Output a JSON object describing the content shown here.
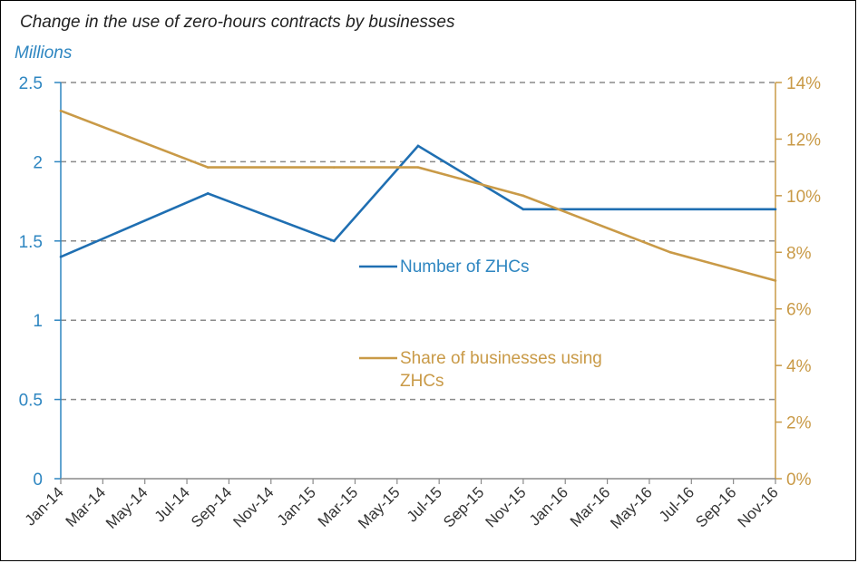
{
  "chart_data": {
    "type": "line",
    "title": "Change in the use of zero-hours contracts by businesses",
    "y_left_label": "Millions",
    "categories": [
      "Jan-14",
      "Mar-14",
      "May-14",
      "Jul-14",
      "Sep-14",
      "Nov-14",
      "Jan-15",
      "Mar-15",
      "May-15",
      "Jul-15",
      "Sep-15",
      "Nov-15",
      "Jan-16",
      "Mar-16",
      "May-16",
      "Jul-16",
      "Sep-16",
      "Nov-16"
    ],
    "ylim_left": [
      0,
      2.5
    ],
    "ylim_right": [
      0,
      14
    ],
    "y_left_ticks": [
      "0",
      "0.5",
      "1",
      "1.5",
      "2",
      "2.5"
    ],
    "y_right_ticks": [
      "0%",
      "2%",
      "4%",
      "6%",
      "8%",
      "10%",
      "12%",
      "14%"
    ],
    "grid": true,
    "series": [
      {
        "name": "Number of ZHCs",
        "axis": "left",
        "color": "#1f6fb2",
        "x": [
          "Jan-14",
          "Aug-14",
          "Feb-15",
          "Jun-15",
          "Nov-15",
          "Nov-16"
        ],
        "values": [
          1.4,
          1.8,
          1.5,
          2.1,
          1.7,
          1.7
        ]
      },
      {
        "name": "Share of businesses using ZHCs",
        "axis": "right",
        "color": "#c99a47",
        "x": [
          "Jan-14",
          "Aug-14",
          "Feb-15",
          "Jun-15",
          "Nov-15",
          "Jun-16",
          "Nov-16"
        ],
        "values": [
          13,
          11,
          11,
          11,
          10,
          8,
          7
        ]
      }
    ],
    "legend": [
      {
        "label_lines": [
          "Number of ZHCs"
        ]
      },
      {
        "label_lines": [
          "Share of businesses using",
          "ZHCs"
        ]
      }
    ]
  }
}
